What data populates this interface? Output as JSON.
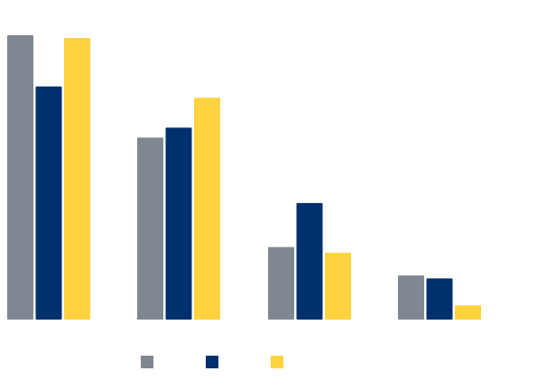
{
  "chart_data": {
    "type": "bar",
    "title": "",
    "xlabel": "",
    "ylabel": "",
    "ylim": [
      0,
      100
    ],
    "grid": false,
    "legend_position": "bottom",
    "categories": [
      "",
      "",
      "",
      ""
    ],
    "series": [
      {
        "name": "",
        "color": "#7f8890",
        "values": [
          100,
          64,
          25.5,
          15.5
        ]
      },
      {
        "name": "",
        "color": "#00306e",
        "values": [
          82,
          67.5,
          41,
          14.5
        ]
      },
      {
        "name": "",
        "color": "#ffd23f",
        "values": [
          99,
          78,
          23.5,
          5
        ]
      }
    ]
  }
}
